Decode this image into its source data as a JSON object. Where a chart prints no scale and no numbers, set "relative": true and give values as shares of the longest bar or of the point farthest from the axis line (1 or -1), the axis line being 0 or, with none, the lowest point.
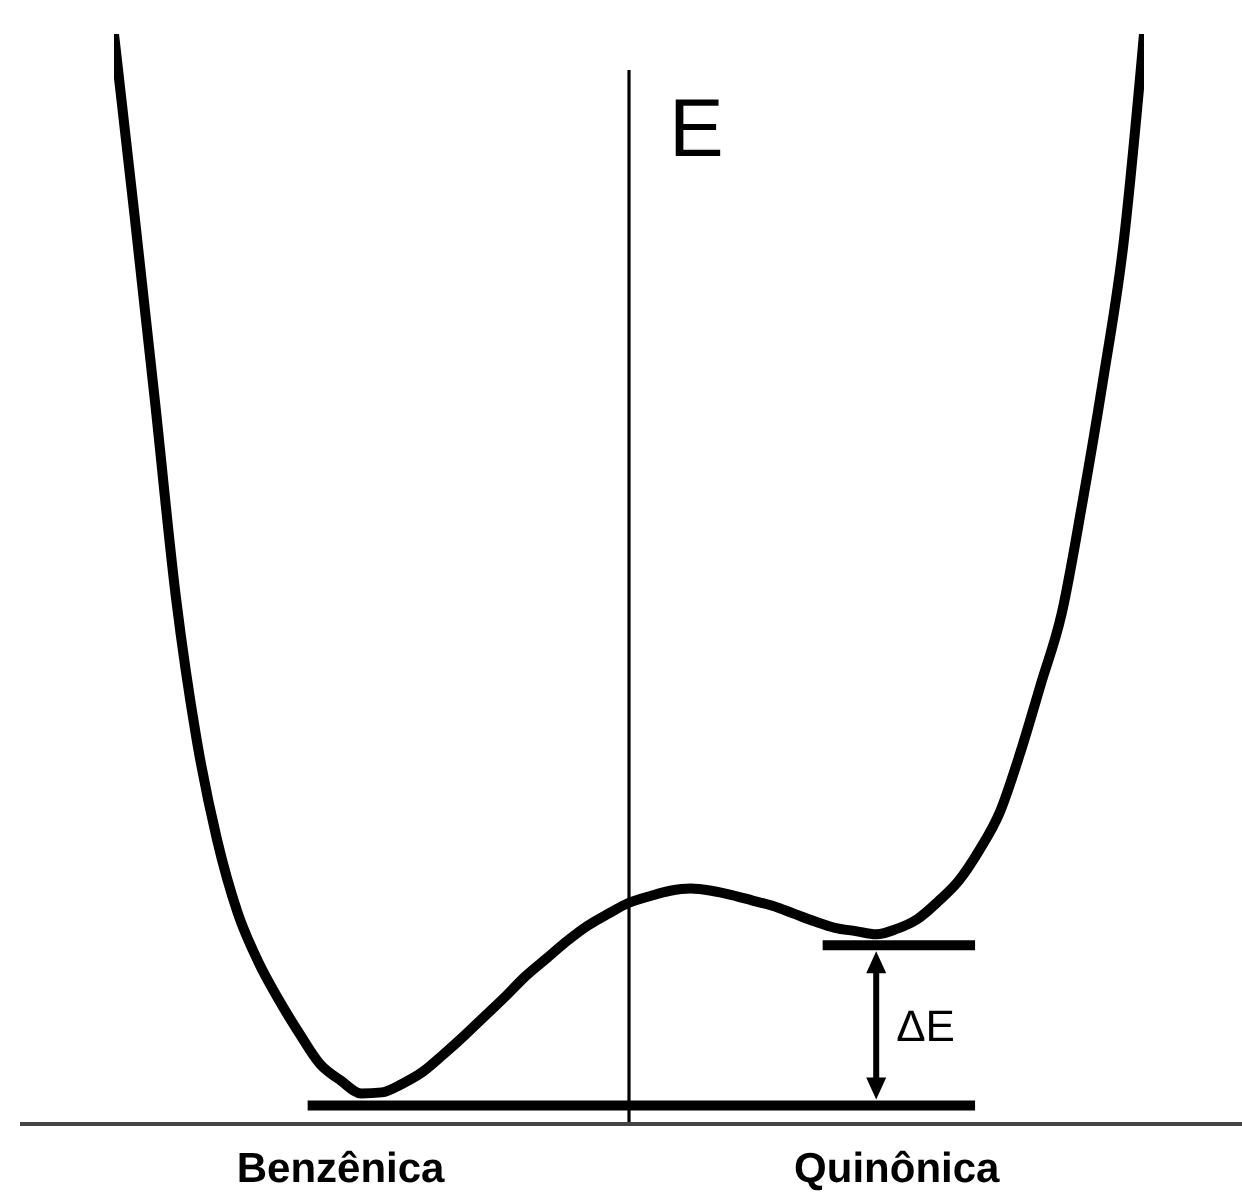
{
  "chart_data": {
    "type": "line",
    "relative": true,
    "ylabel": "E",
    "categories": [
      null,
      null,
      null,
      null,
      null,
      null,
      null,
      null,
      null,
      null,
      null,
      "Benzênica",
      null,
      null,
      null,
      null,
      null,
      null,
      null,
      null,
      null,
      null,
      null,
      null,
      null,
      null,
      null,
      null,
      null,
      null,
      null,
      null,
      null,
      null,
      null,
      null,
      null,
      null,
      "Quinônica",
      null,
      null,
      null,
      null,
      null,
      null,
      null,
      null,
      null,
      null,
      null,
      null
    ],
    "series": [
      {
        "color": "#000000",
        "values": [
          1.0,
          0.833,
          0.661,
          0.484,
          0.354,
          0.261,
          0.194,
          0.149,
          0.114,
          0.083,
          0.055,
          0.04,
          0.028,
          0.029,
          0.037,
          0.048,
          0.064,
          0.081,
          0.099,
          0.117,
          0.136,
          0.152,
          0.168,
          0.182,
          0.193,
          0.203,
          0.209,
          0.214,
          0.216,
          0.214,
          0.21,
          0.205,
          0.2,
          0.193,
          0.186,
          0.18,
          0.177,
          0.174,
          0.179,
          0.188,
          0.204,
          0.223,
          0.251,
          0.286,
          0.341,
          0.404,
          0.468,
          0.569,
          0.681,
          0.807,
          1.0
        ]
      }
    ],
    "ref_lines": [
      {
        "axis": "y",
        "value": 0.017,
        "color": "#000000"
      },
      {
        "axis": "y",
        "value": 0.164,
        "color": "#000000"
      }
    ],
    "annotations": [
      "ΔE"
    ],
    "marker": "none",
    "line_style": "solid"
  }
}
